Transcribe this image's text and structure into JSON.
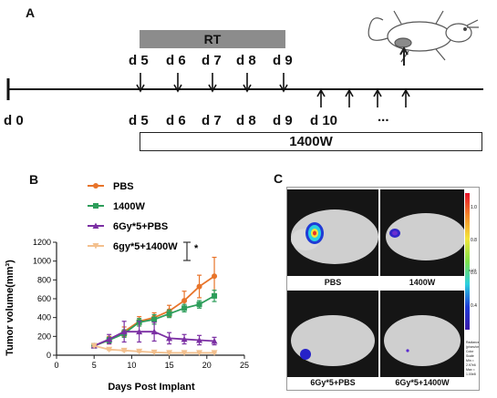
{
  "panel_a": {
    "letter": "A",
    "rt_label": "RT",
    "treatment_label": "1400W",
    "top_days": [
      "d 5",
      "d 6",
      "d 7",
      "d 8",
      "d 9"
    ],
    "start_label": "d 0",
    "bottom_days": [
      "d 5",
      "d 6",
      "d 7",
      "d 8",
      "d 9",
      "d 10",
      "..."
    ]
  },
  "panel_b": {
    "letter": "B",
    "significance": "*"
  },
  "panel_c": {
    "letter": "C",
    "captions": [
      "PBS",
      "1400W",
      "6Gy*5+PBS",
      "6Gy*5+1400W"
    ],
    "scale_ticks": [
      "1.0",
      "0.8",
      "0.6",
      "0.4",
      "0.2"
    ],
    "scale_exponent": "x10⁸",
    "color_scale_note": [
      "Radiance",
      "(p/sec/cm²/sr)",
      "Color Scale",
      "Min = 2.97e6",
      "Max = 1.00e8"
    ]
  },
  "chart_data": {
    "type": "line",
    "xlabel": "Days Post Implant",
    "ylabel": "Tumor volume(mm³)",
    "xlim": [
      0,
      25
    ],
    "ylim": [
      0,
      1200
    ],
    "xticks": [
      0,
      5,
      10,
      15,
      20,
      25
    ],
    "yticks": [
      0,
      200,
      400,
      600,
      800,
      1000,
      1200
    ],
    "legend_position": "top-left",
    "x": [
      5,
      7,
      9,
      11,
      13,
      15,
      17,
      19,
      21
    ],
    "series": [
      {
        "name": "PBS",
        "color": "#e8742a",
        "marker": "circle",
        "values": [
          100,
          160,
          250,
          360,
          400,
          470,
          580,
          730,
          840
        ],
        "errors": [
          10,
          40,
          50,
          50,
          50,
          60,
          100,
          120,
          200
        ]
      },
      {
        "name": "1400W",
        "color": "#2e9e5b",
        "marker": "square",
        "values": [
          100,
          160,
          230,
          350,
          380,
          440,
          500,
          540,
          630
        ],
        "errors": [
          10,
          30,
          40,
          40,
          50,
          40,
          40,
          40,
          60
        ]
      },
      {
        "name": "6Gy*5+PBS",
        "color": "#7b2fa3",
        "marker": "triangle",
        "values": [
          100,
          170,
          250,
          250,
          250,
          180,
          170,
          160,
          150
        ],
        "errors": [
          10,
          50,
          110,
          110,
          100,
          60,
          50,
          50,
          40
        ]
      },
      {
        "name": "6gy*5+1400W",
        "color": "#f3c08e",
        "marker": "triangle-down",
        "values": [
          100,
          60,
          50,
          40,
          30,
          25,
          25,
          25,
          25
        ],
        "errors": [
          10,
          10,
          10,
          8,
          5,
          5,
          5,
          5,
          5
        ]
      }
    ]
  }
}
